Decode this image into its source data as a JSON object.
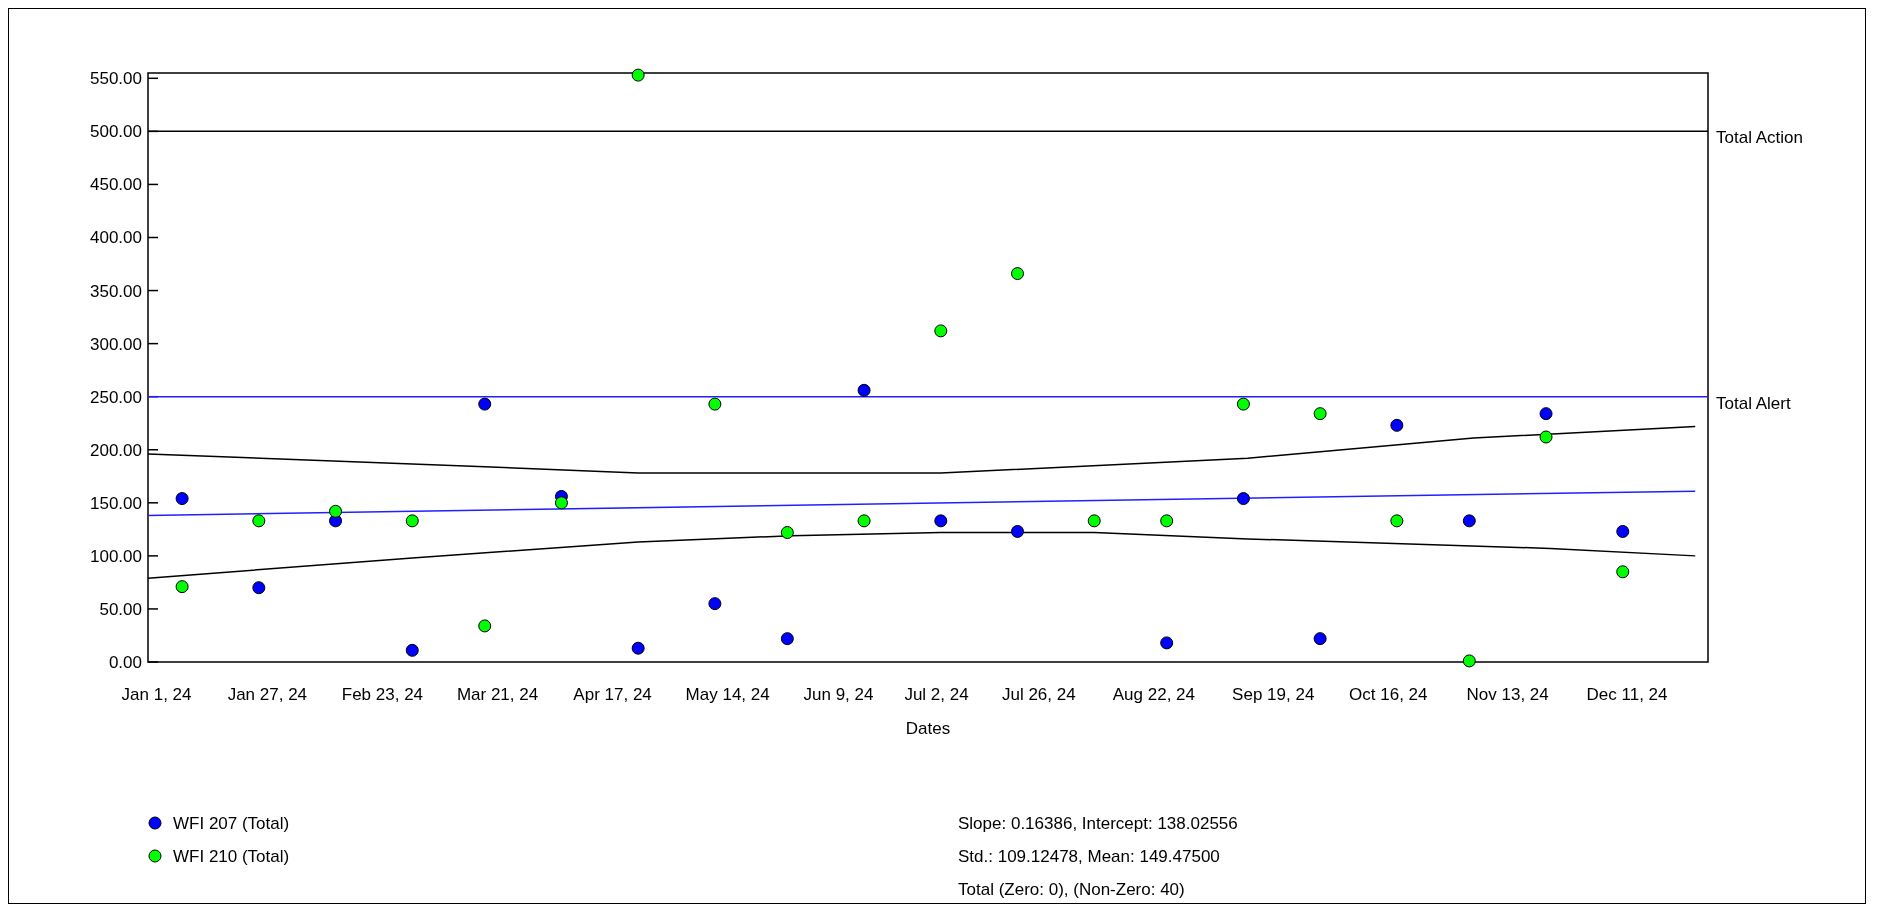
{
  "chart_data": {
    "type": "scatter",
    "xlabel": "Dates",
    "legend": "bottom left",
    "x": [
      "2024-01-07",
      "2024-01-25",
      "2024-02-12",
      "2024-03-01",
      "2024-03-18",
      "2024-04-05",
      "2024-04-23",
      "2024-05-11",
      "2024-05-28",
      "2024-06-15",
      "2024-07-03",
      "2024-07-21",
      "2024-08-08",
      "2024-08-25",
      "2024-09-12",
      "2024-09-30",
      "2024-10-18",
      "2024-11-04",
      "2024-11-22",
      "2024-12-10"
    ],
    "xlim": [
      "2023-12-30",
      "2024-12-30"
    ],
    "xticks": [
      {
        "value": "2024-01-01",
        "label": "Jan 1, 24"
      },
      {
        "value": "2024-01-27",
        "label": "Jan 27, 24"
      },
      {
        "value": "2024-02-23",
        "label": "Feb 23, 24"
      },
      {
        "value": "2024-03-21",
        "label": "Mar 21, 24"
      },
      {
        "value": "2024-04-17",
        "label": "Apr 17, 24"
      },
      {
        "value": "2024-05-14",
        "label": "May 14, 24"
      },
      {
        "value": "2024-06-09",
        "label": "Jun 9, 24"
      },
      {
        "value": "2024-07-02",
        "label": "Jul 2, 24"
      },
      {
        "value": "2024-07-26",
        "label": "Jul 26, 24"
      },
      {
        "value": "2024-08-22",
        "label": "Aug 22, 24"
      },
      {
        "value": "2024-09-19",
        "label": "Sep 19, 24"
      },
      {
        "value": "2024-10-16",
        "label": "Oct 16, 24"
      },
      {
        "value": "2024-11-13",
        "label": "Nov 13, 24"
      },
      {
        "value": "2024-12-11",
        "label": "Dec 11, 24"
      }
    ],
    "ylim": [
      0,
      555
    ],
    "yticks": [
      {
        "value": 0,
        "label": "0.00"
      },
      {
        "value": 50,
        "label": "50.00"
      },
      {
        "value": 100,
        "label": "100.00"
      },
      {
        "value": 150,
        "label": "150.00"
      },
      {
        "value": 200,
        "label": "200.00"
      },
      {
        "value": 250,
        "label": "250.00"
      },
      {
        "value": 300,
        "label": "300.00"
      },
      {
        "value": 350,
        "label": "350.00"
      },
      {
        "value": 400,
        "label": "400.00"
      },
      {
        "value": 450,
        "label": "450.00"
      },
      {
        "value": 500,
        "label": "500.00"
      },
      {
        "value": 550,
        "label": "550.00"
      }
    ],
    "ref_lines": [
      {
        "axis": "y",
        "value": 500,
        "label": "Total Action",
        "color": "#000000"
      },
      {
        "axis": "y",
        "value": 250,
        "label": "Total Alert",
        "color": "#2020ff"
      }
    ],
    "series": [
      {
        "type": "line",
        "color": "#2020ff",
        "x": [
          "2023-12-30",
          "2024-12-27"
        ],
        "values": [
          138,
          161
        ]
      },
      {
        "type": "line",
        "color": "#000000",
        "x": [
          "2023-12-30",
          "2024-03-18",
          "2024-04-23",
          "2024-07-03",
          "2024-09-13",
          "2024-11-05",
          "2024-12-27"
        ],
        "values": [
          196,
          184,
          178,
          178,
          192,
          211,
          222
        ]
      },
      {
        "type": "line",
        "color": "#000000",
        "x": [
          "2023-12-30",
          "2024-03-01",
          "2024-04-23",
          "2024-05-29",
          "2024-07-03",
          "2024-08-08",
          "2024-09-13",
          "2024-11-23",
          "2024-12-27"
        ],
        "values": [
          79,
          98,
          113,
          119,
          122,
          122,
          116,
          107,
          100
        ]
      },
      {
        "name": "WFI 207 (Total)",
        "color": "#0000ff",
        "marker": "circle",
        "values": [
          154,
          70,
          133,
          11,
          243,
          156,
          13,
          55,
          22,
          256,
          133,
          123,
          null,
          18,
          154,
          22,
          223,
          133,
          234,
          123
        ]
      },
      {
        "name": "WFI 210 (Total)",
        "color": "#00ff00",
        "marker": "circle",
        "values": [
          71,
          133,
          142,
          133,
          34,
          150,
          553,
          243,
          122,
          133,
          312,
          366,
          133,
          133,
          243,
          234,
          133,
          1,
          212,
          85
        ]
      }
    ],
    "annotations": [
      "Slope: 0.16386, Intercept: 138.02556",
      "Std.: 109.12478, Mean: 149.47500",
      "Total (Zero: 0),  (Non-Zero: 40)"
    ]
  }
}
